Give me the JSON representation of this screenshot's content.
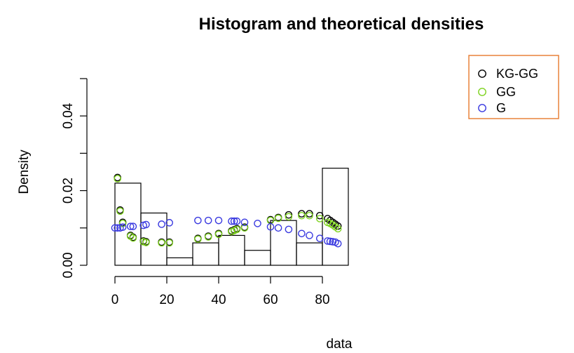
{
  "chart_data": {
    "type": "histogram",
    "title": "Histogram and theoretical densities",
    "xlabel": "data",
    "ylabel": "Density",
    "xlim": [
      0,
      88
    ],
    "ylim": [
      0,
      0.05
    ],
    "x_ticks": [
      0,
      20,
      40,
      60,
      80
    ],
    "x_tick_labels": [
      "0",
      "20",
      "40",
      "60",
      "80"
    ],
    "y_ticks": [
      0,
      0.02,
      0.04
    ],
    "y_tick_labels": [
      "0.00",
      "0.02",
      "0.04"
    ],
    "y_axis_range": [
      0,
      0.05
    ],
    "x_axis_range": [
      0,
      80
    ],
    "grid": false,
    "legend_position": "top-right",
    "histogram": {
      "breaks": [
        0,
        10,
        20,
        30,
        40,
        50,
        60,
        70,
        80,
        90
      ],
      "density": [
        0.022,
        0.014,
        0.002,
        0.006,
        0.008,
        0.004,
        0.012,
        0.006,
        0.026
      ]
    },
    "series": [
      {
        "name": "KG-GG",
        "color": "#000000",
        "points": [
          {
            "x": 1,
            "y": 0.0235
          },
          {
            "x": 2,
            "y": 0.0148
          },
          {
            "x": 3,
            "y": 0.0115
          },
          {
            "x": 6,
            "y": 0.008
          },
          {
            "x": 7,
            "y": 0.0075
          },
          {
            "x": 11,
            "y": 0.0065
          },
          {
            "x": 12,
            "y": 0.0063
          },
          {
            "x": 18,
            "y": 0.0062
          },
          {
            "x": 21,
            "y": 0.0062
          },
          {
            "x": 32,
            "y": 0.0072
          },
          {
            "x": 36,
            "y": 0.0078
          },
          {
            "x": 40,
            "y": 0.0085
          },
          {
            "x": 45,
            "y": 0.0092
          },
          {
            "x": 46,
            "y": 0.0095
          },
          {
            "x": 47,
            "y": 0.0098
          },
          {
            "x": 50,
            "y": 0.0102
          },
          {
            "x": 60,
            "y": 0.0122
          },
          {
            "x": 63,
            "y": 0.0128
          },
          {
            "x": 67,
            "y": 0.0135
          },
          {
            "x": 72,
            "y": 0.0138
          },
          {
            "x": 75,
            "y": 0.0138
          },
          {
            "x": 79,
            "y": 0.0133
          },
          {
            "x": 82,
            "y": 0.0125
          },
          {
            "x": 83,
            "y": 0.012
          },
          {
            "x": 84,
            "y": 0.0115
          },
          {
            "x": 85,
            "y": 0.011
          },
          {
            "x": 86,
            "y": 0.0105
          }
        ]
      },
      {
        "name": "GG",
        "color": "#7FD321",
        "points": [
          {
            "x": 1,
            "y": 0.0232
          },
          {
            "x": 2,
            "y": 0.0145
          },
          {
            "x": 3,
            "y": 0.0112
          },
          {
            "x": 6,
            "y": 0.0078
          },
          {
            "x": 7,
            "y": 0.0073
          },
          {
            "x": 11,
            "y": 0.0063
          },
          {
            "x": 12,
            "y": 0.0061
          },
          {
            "x": 18,
            "y": 0.006
          },
          {
            "x": 21,
            "y": 0.006
          },
          {
            "x": 32,
            "y": 0.007
          },
          {
            "x": 36,
            "y": 0.0076
          },
          {
            "x": 40,
            "y": 0.0083
          },
          {
            "x": 45,
            "y": 0.009
          },
          {
            "x": 46,
            "y": 0.0093
          },
          {
            "x": 47,
            "y": 0.0096
          },
          {
            "x": 50,
            "y": 0.01
          },
          {
            "x": 60,
            "y": 0.012
          },
          {
            "x": 63,
            "y": 0.0126
          },
          {
            "x": 67,
            "y": 0.013
          },
          {
            "x": 72,
            "y": 0.0133
          },
          {
            "x": 75,
            "y": 0.0133
          },
          {
            "x": 79,
            "y": 0.0125
          },
          {
            "x": 82,
            "y": 0.0115
          },
          {
            "x": 83,
            "y": 0.0112
          },
          {
            "x": 84,
            "y": 0.0108
          },
          {
            "x": 85,
            "y": 0.0103
          },
          {
            "x": 86,
            "y": 0.0098
          }
        ]
      },
      {
        "name": "G",
        "color": "#3A3AE0",
        "points": [
          {
            "x": 0,
            "y": 0.01
          },
          {
            "x": 1,
            "y": 0.01
          },
          {
            "x": 2,
            "y": 0.01
          },
          {
            "x": 3,
            "y": 0.0102
          },
          {
            "x": 6,
            "y": 0.0104
          },
          {
            "x": 7,
            "y": 0.0104
          },
          {
            "x": 11,
            "y": 0.0107
          },
          {
            "x": 12,
            "y": 0.0109
          },
          {
            "x": 18,
            "y": 0.011
          },
          {
            "x": 21,
            "y": 0.0114
          },
          {
            "x": 32,
            "y": 0.012
          },
          {
            "x": 36,
            "y": 0.012
          },
          {
            "x": 40,
            "y": 0.012
          },
          {
            "x": 45,
            "y": 0.0118
          },
          {
            "x": 46,
            "y": 0.0118
          },
          {
            "x": 47,
            "y": 0.0118
          },
          {
            "x": 50,
            "y": 0.0115
          },
          {
            "x": 55,
            "y": 0.0112
          },
          {
            "x": 60,
            "y": 0.0103
          },
          {
            "x": 63,
            "y": 0.01
          },
          {
            "x": 67,
            "y": 0.0096
          },
          {
            "x": 72,
            "y": 0.0085
          },
          {
            "x": 75,
            "y": 0.008
          },
          {
            "x": 79,
            "y": 0.0072
          },
          {
            "x": 82,
            "y": 0.0065
          },
          {
            "x": 83,
            "y": 0.0064
          },
          {
            "x": 84,
            "y": 0.0063
          },
          {
            "x": 85,
            "y": 0.0062
          },
          {
            "x": 86,
            "y": 0.0058
          }
        ]
      }
    ],
    "legend": {
      "border_color": "#E8823A",
      "entries": [
        "KG-GG",
        "GG",
        "G"
      ]
    }
  }
}
